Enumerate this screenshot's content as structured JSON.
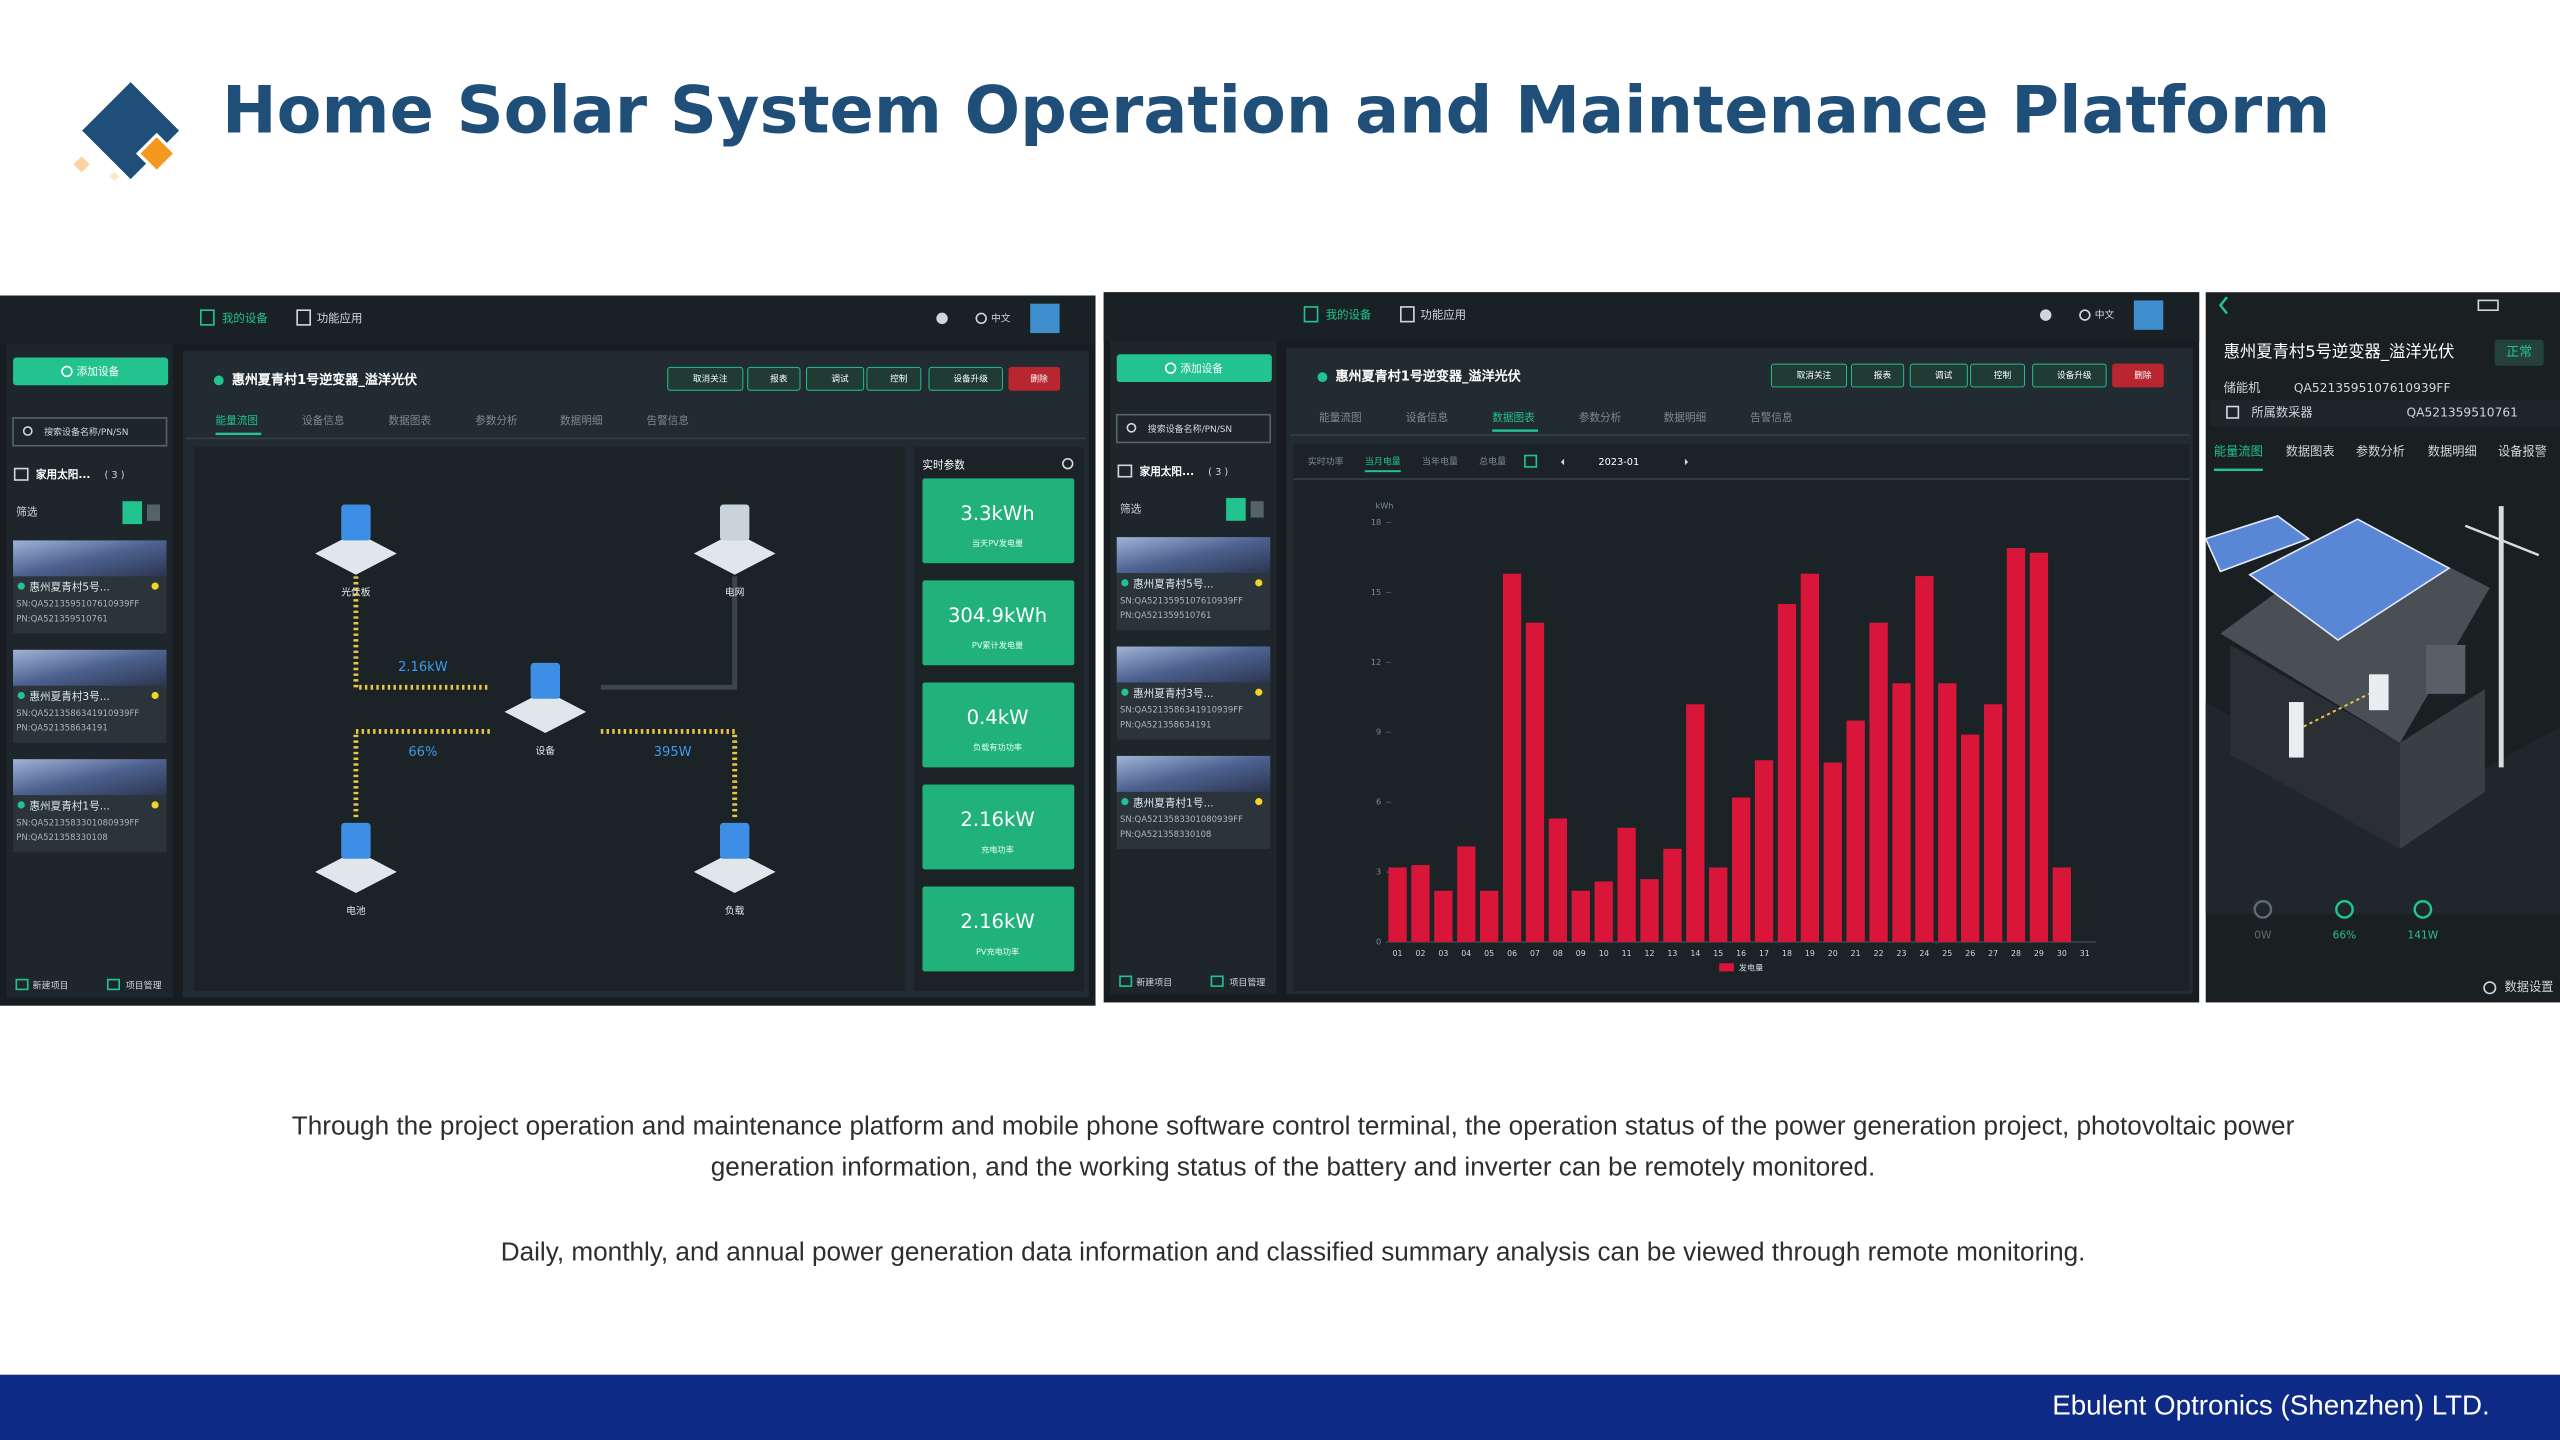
{
  "header": {
    "title": "Home Solar System Operation and Maintenance Platform"
  },
  "screen1": {
    "nav": [
      "我的设备",
      "功能应用"
    ],
    "lang": "中文",
    "add_button": "添加设备",
    "search": "搜索设备名称/PN/SN",
    "group": "家用太阳...",
    "group_count": "( 3 )",
    "filter": "筛选",
    "devices": [
      {
        "name": "惠州夏青村5号...",
        "sn": "SN:QA5213595107610939FF",
        "pn": "PN:QA521359510761"
      },
      {
        "name": "惠州夏青村3号...",
        "sn": "SN:QA5213586341910939FF",
        "pn": "PN:QA521358634191"
      },
      {
        "name": "惠州夏青村1号...",
        "sn": "SN:QA5213583301080939FF",
        "pn": "PN:QA521358330108"
      }
    ],
    "footer": [
      "新建项目",
      "项目管理"
    ],
    "device_title": "惠州夏青村1号逆变器_溢洋光伏",
    "actions": [
      "取消关注",
      "报表",
      "调试",
      "控制",
      "设备升级",
      "删除"
    ],
    "tabs": [
      "能量流图",
      "设备信息",
      "数据图表",
      "参数分析",
      "数据明细",
      "告警信息"
    ],
    "flow": {
      "nodes": [
        "光伏板",
        "电网",
        "设备",
        "电池",
        "负载"
      ],
      "labels": [
        "2.16kW",
        "66%",
        "395W"
      ]
    },
    "realtime": {
      "title": "实时参数",
      "cards": [
        {
          "value": "3.3kWh",
          "label": "当天PV发电量"
        },
        {
          "value": "304.9kWh",
          "label": "PV累计发电量"
        },
        {
          "value": "0.4kW",
          "label": "负载有功功率"
        },
        {
          "value": "2.16kW",
          "label": "充电功率"
        },
        {
          "value": "2.16kW",
          "label": "PV充电功率"
        }
      ]
    }
  },
  "screen2": {
    "nav": [
      "我的设备",
      "功能应用"
    ],
    "lang": "中文",
    "add_button": "添加设备",
    "search": "搜索设备名称/PN/SN",
    "group": "家用太阳...",
    "group_count": "( 3 )",
    "filter": "筛选",
    "devices": [
      {
        "name": "惠州夏青村5号...",
        "sn": "SN:QA5213595107610939FF",
        "pn": "PN:QA521359510761"
      },
      {
        "name": "惠州夏青村3号...",
        "sn": "SN:QA5213586341910939FF",
        "pn": "PN:QA521358634191"
      },
      {
        "name": "惠州夏青村1号...",
        "sn": "SN:QA5213583301080939FF",
        "pn": "PN:QA521358330108"
      }
    ],
    "footer": [
      "新建项目",
      "项目管理"
    ],
    "device_title": "惠州夏青村1号逆变器_溢洋光伏",
    "actions": [
      "取消关注",
      "报表",
      "调试",
      "控制",
      "设备升级",
      "删除"
    ],
    "tabs": [
      "能量流图",
      "设备信息",
      "数据图表",
      "参数分析",
      "数据明细",
      "告警信息"
    ],
    "subtabs": [
      "实时功率",
      "当月电量",
      "当年电量",
      "总电量"
    ],
    "date": "2023-01"
  },
  "chart_data": {
    "type": "bar",
    "y_label": "kWh",
    "categories": [
      "01",
      "02",
      "03",
      "04",
      "05",
      "06",
      "07",
      "08",
      "09",
      "10",
      "11",
      "12",
      "13",
      "14",
      "15",
      "16",
      "17",
      "18",
      "19",
      "20",
      "21",
      "22",
      "23",
      "24",
      "25",
      "26",
      "27",
      "28",
      "29",
      "30",
      "31"
    ],
    "series": [
      {
        "name": "发电量",
        "color": "#d9163a",
        "values": [
          3.2,
          3.3,
          2.2,
          4.1,
          2.2,
          15.8,
          13.7,
          5.3,
          2.2,
          2.6,
          4.9,
          2.7,
          4.0,
          10.2,
          3.2,
          6.2,
          7.8,
          14.5,
          15.8,
          7.7,
          9.5,
          13.7,
          11.1,
          15.7,
          11.1,
          8.9,
          10.2,
          16.9,
          16.7,
          3.2,
          0
        ]
      }
    ],
    "ylim": [
      0,
      18
    ],
    "yticks": [
      0,
      3,
      6,
      9,
      12,
      15,
      18
    ],
    "grid": false
  },
  "screen3": {
    "title": "惠州夏青村5号逆变器_溢洋光伏",
    "status": "正常",
    "type_label": "储能机",
    "serial": "QA5213595107610939FF",
    "collector_label": "所属数采器",
    "collector": "QA521359510761",
    "tabs": [
      "能量流图",
      "数据图表",
      "参数分析",
      "数据明细",
      "设备报警"
    ],
    "readings": [
      "0W",
      "66%",
      "141W"
    ],
    "settings": "数据设置"
  },
  "description": [
    "Through the project operation and maintenance platform and mobile phone software control terminal, the operation status of the power generation project, photovoltaic power generation information, and the working status of the battery and inverter can be remotely monitored.",
    "Daily, monthly, and annual power generation data information and classified summary analysis can be viewed through remote monitoring."
  ],
  "footer": {
    "company": "Ebulent Optronics (Shenzhen) LTD."
  }
}
